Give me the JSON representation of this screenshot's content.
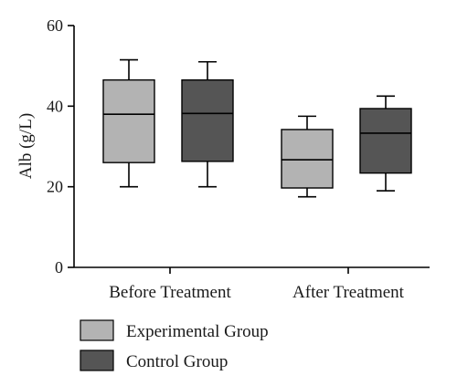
{
  "chart_data": {
    "type": "boxplot",
    "ylabel": "Alb (g/L)",
    "ylim": [
      0,
      60
    ],
    "yticks": [
      0,
      20,
      40,
      60
    ],
    "categories": [
      "Before Treatment",
      "After Treatment"
    ],
    "grid": false,
    "legend_position": "bottom-left",
    "series": [
      {
        "name": "Experimental Group",
        "color": "#b3b3b3",
        "boxes": [
          {
            "min": 20,
            "q1": 26,
            "median": 38,
            "q3": 46.5,
            "max": 51.5
          },
          {
            "min": 17.5,
            "q1": 19.7,
            "median": 26.7,
            "q3": 34.2,
            "max": 37.5
          }
        ]
      },
      {
        "name": "Control Group",
        "color": "#555555",
        "boxes": [
          {
            "min": 20,
            "q1": 26.3,
            "median": 38.2,
            "q3": 46.5,
            "max": 51
          },
          {
            "min": 19,
            "q1": 23.4,
            "median": 33.3,
            "q3": 39.4,
            "max": 42.5
          }
        ]
      }
    ]
  }
}
